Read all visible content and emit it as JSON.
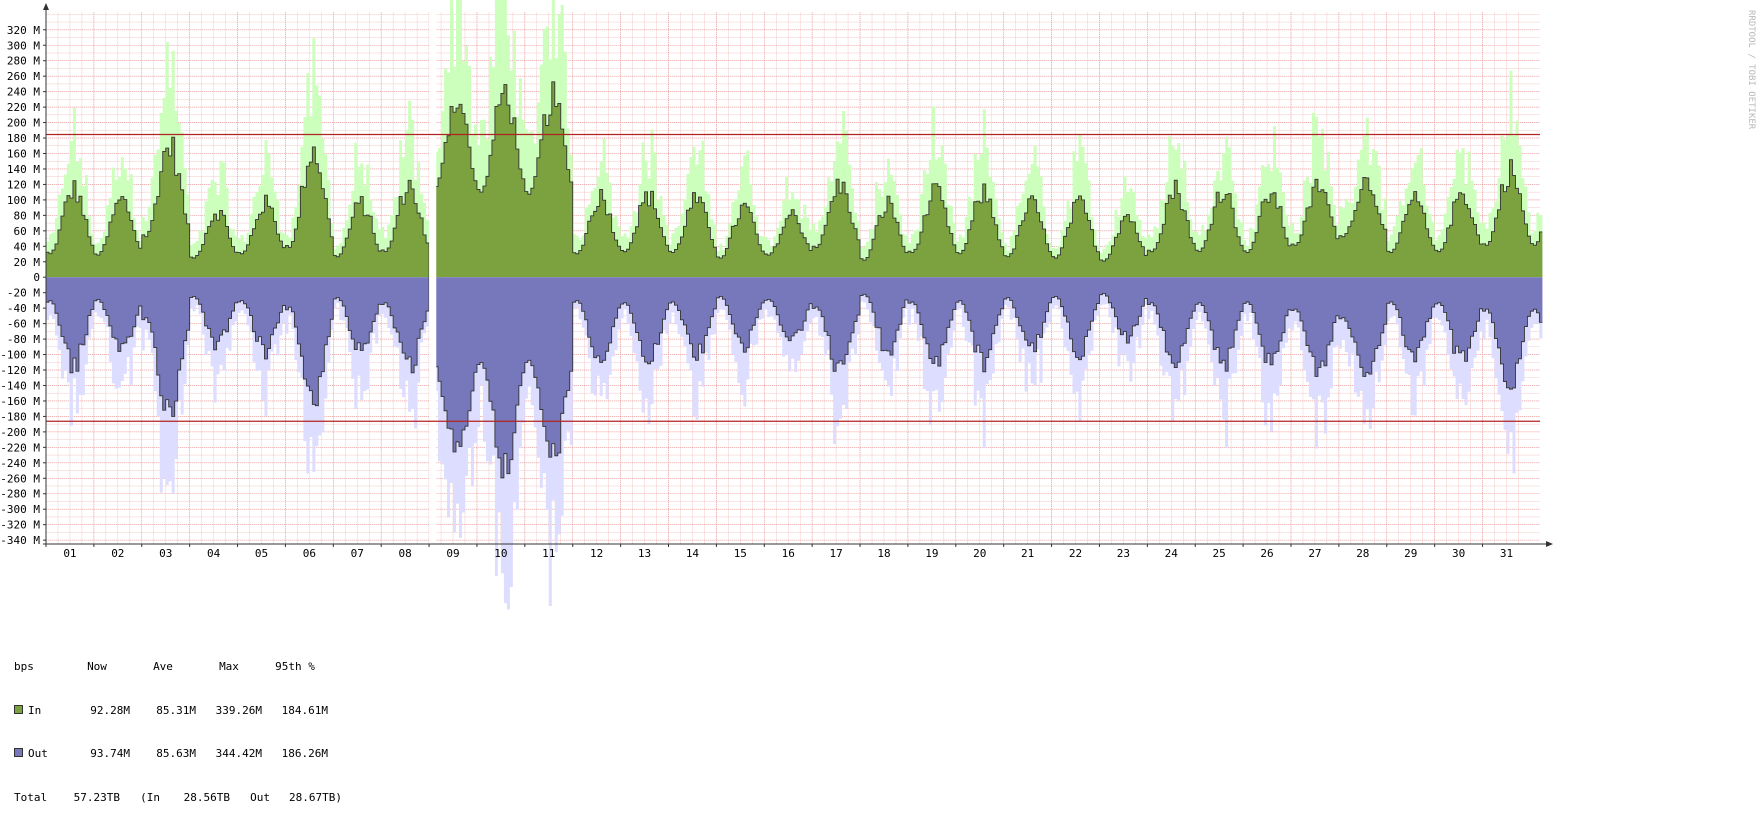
{
  "chart_data": {
    "type": "area",
    "unit": "bps",
    "watermark": "RRDTOOL / TOBI OETIKER",
    "x_ticks": [
      "01",
      "02",
      "03",
      "04",
      "05",
      "06",
      "07",
      "08",
      "09",
      "10",
      "11",
      "12",
      "13",
      "14",
      "15",
      "16",
      "17",
      "18",
      "19",
      "20",
      "21",
      "22",
      "23",
      "24",
      "25",
      "26",
      "27",
      "28",
      "29",
      "30",
      "31"
    ],
    "y_ticks": [
      "320 M",
      "300 M",
      "280 M",
      "260 M",
      "240 M",
      "220 M",
      "200 M",
      "180 M",
      "160 M",
      "140 M",
      "120 M",
      "100 M",
      "80 M",
      "60 M",
      "40 M",
      "20 M",
      "0",
      "-20 M",
      "-40 M",
      "-60 M",
      "-80 M",
      "-100 M",
      "-120 M",
      "-140 M",
      "-160 M",
      "-180 M",
      "-200 M",
      "-220 M",
      "-240 M",
      "-260 M",
      "-280 M",
      "-300 M",
      "-320 M",
      "-340 M"
    ],
    "y_values": [
      320,
      300,
      280,
      260,
      240,
      220,
      200,
      180,
      160,
      140,
      120,
      100,
      80,
      60,
      40,
      20,
      0,
      -20,
      -40,
      -60,
      -80,
      -100,
      -120,
      -140,
      -160,
      -180,
      -200,
      -220,
      -240,
      -260,
      -280,
      -300,
      -320,
      -340
    ],
    "ylim": [
      -345,
      343
    ],
    "xlim_days": [
      0.5,
      31.7
    ],
    "gap_days": [
      8.5,
      8.6
    ],
    "percentile_95": {
      "in": 184.61,
      "out": -186.26,
      "color": "#b22222"
    },
    "series": [
      {
        "name": "In",
        "color": "#7ba23f",
        "peak_color": "#ccffbb",
        "daily_base": [
          55,
          52,
          95,
          45,
          55,
          70,
          48,
          60,
          200,
          200,
          195,
          55,
          60,
          58,
          45,
          52,
          70,
          40,
          58,
          55,
          48,
          45,
          38,
          60,
          60,
          58,
          75,
          95,
          58,
          60,
          75
        ],
        "daily_peak": [
          120,
          105,
          180,
          90,
          100,
          175,
          100,
          125,
          240,
          250,
          240,
          110,
          110,
          105,
          95,
          85,
          125,
          100,
          115,
          115,
          100,
          100,
          85,
          120,
          120,
          115,
          125,
          130,
          105,
          115,
          145
        ]
      },
      {
        "name": "Out",
        "color": "#7777bb",
        "peak_color": "#ddddff",
        "daily_base": [
          55,
          52,
          95,
          45,
          55,
          70,
          48,
          60,
          200,
          200,
          195,
          55,
          60,
          58,
          45,
          52,
          70,
          40,
          58,
          55,
          48,
          45,
          38,
          60,
          60,
          58,
          75,
          95,
          58,
          60,
          75
        ],
        "daily_peak": [
          120,
          105,
          180,
          90,
          100,
          175,
          100,
          125,
          240,
          250,
          240,
          110,
          110,
          105,
          95,
          85,
          125,
          100,
          115,
          115,
          100,
          100,
          85,
          120,
          120,
          115,
          125,
          130,
          105,
          115,
          145
        ]
      }
    ]
  },
  "legend": {
    "header": {
      "unit": "bps",
      "now": "Now",
      "ave": "Ave",
      "max": "Max",
      "p95": "95th %"
    },
    "rows": [
      {
        "label": "In",
        "color": "#7ba23f",
        "now": "92.28M",
        "ave": "85.31M",
        "max": "339.26M",
        "p95": "184.61M"
      },
      {
        "label": "Out",
        "color": "#7777bb",
        "now": "93.74M",
        "ave": "85.63M",
        "max": "344.42M",
        "p95": "186.26M"
      }
    ],
    "total": {
      "label": "Total",
      "value": "57.23TB",
      "in_label": "(In",
      "in_value": "28.56TB",
      "out_label": "Out",
      "out_value": "28.67TB)"
    }
  }
}
